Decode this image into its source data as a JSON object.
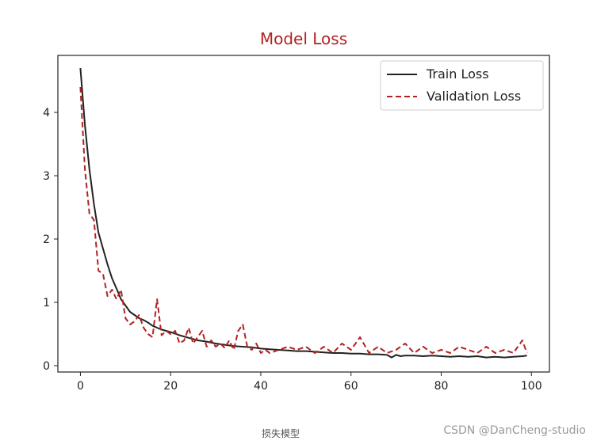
{
  "chart_data": {
    "type": "line",
    "title": "Model Loss",
    "title_color": "#b22222",
    "xlabel": "",
    "ylabel": "",
    "xlim": [
      -5,
      104
    ],
    "ylim": [
      -0.1,
      4.9
    ],
    "x_ticks": [
      0,
      20,
      40,
      60,
      80,
      100
    ],
    "y_ticks": [
      0,
      1,
      2,
      3,
      4
    ],
    "grid": false,
    "legend": "top-right",
    "series": [
      {
        "name": "Train Loss",
        "color": "#222222",
        "dash": "solid",
        "x": [
          0,
          1,
          2,
          3,
          4,
          5,
          6,
          7,
          8,
          9,
          10,
          11,
          12,
          13,
          14,
          15,
          16,
          17,
          18,
          19,
          20,
          22,
          24,
          26,
          28,
          30,
          32,
          34,
          36,
          38,
          40,
          42,
          44,
          46,
          48,
          50,
          52,
          54,
          56,
          58,
          60,
          62,
          64,
          66,
          68,
          69,
          70,
          71,
          72,
          74,
          76,
          78,
          80,
          82,
          84,
          86,
          88,
          90,
          92,
          94,
          96,
          98,
          99
        ],
        "y": [
          4.7,
          3.8,
          3.1,
          2.55,
          2.1,
          1.85,
          1.6,
          1.38,
          1.22,
          1.05,
          0.95,
          0.85,
          0.8,
          0.75,
          0.72,
          0.68,
          0.63,
          0.6,
          0.57,
          0.55,
          0.53,
          0.48,
          0.44,
          0.4,
          0.38,
          0.35,
          0.33,
          0.31,
          0.3,
          0.29,
          0.27,
          0.26,
          0.25,
          0.24,
          0.23,
          0.23,
          0.22,
          0.21,
          0.2,
          0.2,
          0.19,
          0.19,
          0.18,
          0.18,
          0.17,
          0.13,
          0.17,
          0.15,
          0.16,
          0.16,
          0.15,
          0.16,
          0.15,
          0.14,
          0.15,
          0.14,
          0.15,
          0.13,
          0.14,
          0.13,
          0.14,
          0.15,
          0.16
        ]
      },
      {
        "name": "Validation Loss",
        "color": "#b22222",
        "dash": "dashed",
        "x": [
          0,
          1,
          2,
          3,
          4,
          5,
          6,
          7,
          8,
          9,
          10,
          11,
          12,
          13,
          14,
          15,
          16,
          17,
          18,
          19,
          20,
          21,
          22,
          23,
          24,
          25,
          26,
          27,
          28,
          29,
          30,
          31,
          32,
          33,
          34,
          35,
          36,
          37,
          38,
          39,
          40,
          41,
          42,
          44,
          46,
          48,
          50,
          52,
          54,
          56,
          58,
          60,
          62,
          64,
          66,
          68,
          70,
          72,
          74,
          76,
          78,
          80,
          82,
          84,
          86,
          88,
          90,
          92,
          94,
          96,
          98,
          99
        ],
        "y": [
          4.4,
          3.1,
          2.4,
          2.3,
          1.5,
          1.45,
          1.1,
          1.2,
          1.05,
          1.2,
          0.75,
          0.65,
          0.7,
          0.8,
          0.6,
          0.5,
          0.45,
          1.05,
          0.48,
          0.55,
          0.5,
          0.55,
          0.35,
          0.4,
          0.6,
          0.35,
          0.45,
          0.55,
          0.3,
          0.4,
          0.3,
          0.35,
          0.28,
          0.4,
          0.25,
          0.55,
          0.65,
          0.3,
          0.25,
          0.35,
          0.2,
          0.25,
          0.2,
          0.25,
          0.3,
          0.25,
          0.3,
          0.2,
          0.3,
          0.2,
          0.35,
          0.25,
          0.45,
          0.2,
          0.3,
          0.2,
          0.25,
          0.35,
          0.2,
          0.3,
          0.2,
          0.25,
          0.2,
          0.3,
          0.25,
          0.2,
          0.3,
          0.2,
          0.25,
          0.2,
          0.4,
          0.2
        ]
      }
    ]
  },
  "caption": "损失模型",
  "watermark": "CSDN @DanCheng-studio"
}
